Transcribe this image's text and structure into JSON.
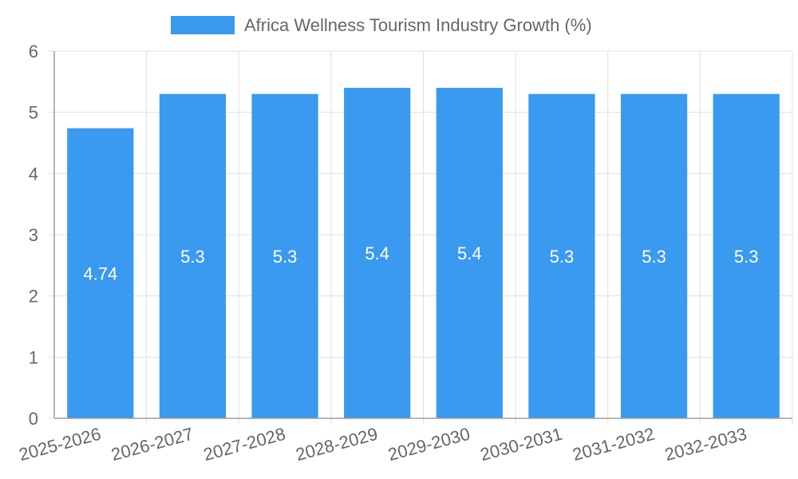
{
  "chart_data": {
    "type": "bar",
    "legend": {
      "label": "Africa Wellness Tourism Industry Growth (%)",
      "position": "top"
    },
    "categories": [
      "2025-2026",
      "2026-2027",
      "2027-2028",
      "2028-2029",
      "2029-2030",
      "2030-2031",
      "2031-2032",
      "2032-2033"
    ],
    "series": [
      {
        "name": "Africa Wellness Tourism Industry Growth (%)",
        "values": [
          4.74,
          5.3,
          5.3,
          5.4,
          5.4,
          5.3,
          5.3,
          5.3
        ],
        "data_labels": [
          "4.74",
          "5.3",
          "5.3",
          "5.4",
          "5.4",
          "5.3",
          "5.3",
          "5.3"
        ]
      }
    ],
    "ylim": [
      0,
      6
    ],
    "y_ticks": [
      "0",
      "1",
      "2",
      "3",
      "4",
      "5",
      "6"
    ],
    "xlabel": "",
    "ylabel": "",
    "grid": true
  },
  "colors": {
    "bar": "#3a9af0",
    "grid": "#e0e0e0",
    "axis": "#9e9e9e",
    "tick_text": "#666666",
    "data_label": "#ffffff",
    "legend_text": "#666666"
  }
}
